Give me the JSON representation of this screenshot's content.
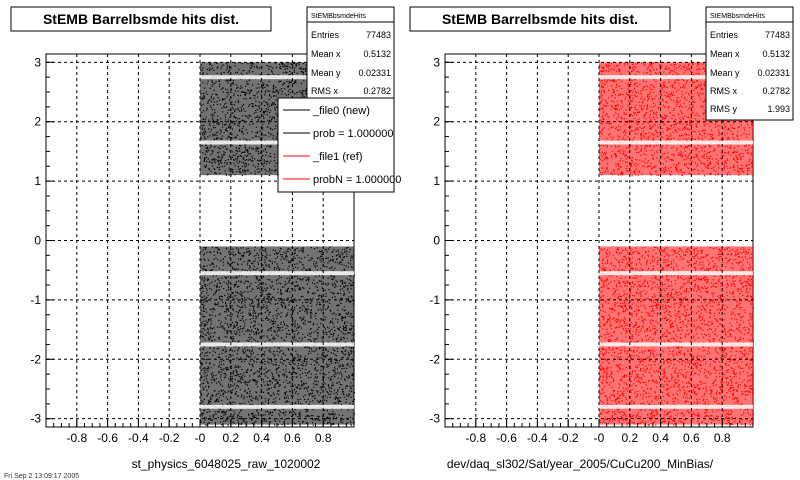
{
  "chart_data": [
    {
      "type": "scatter",
      "title": "StEMB Barrelbsmde hits dist.",
      "xlabel": "st_physics_6048025_raw_1020002",
      "ylabel": "",
      "xlim": [
        -1.0,
        1.0
      ],
      "ylim": [
        -3.14,
        3.14
      ],
      "x_ticks": [
        "-0.8",
        "-0.6",
        "-0.4",
        "-0.2",
        "-0",
        "0.2",
        "0.4",
        "0.6",
        "0.8"
      ],
      "y_ticks": [
        "-3",
        "-2",
        "-1",
        "0",
        "1",
        "2",
        "3"
      ],
      "grid": true,
      "series": [
        {
          "name": "_file0 (new)",
          "color": "#000000"
        }
      ],
      "data_regions": [
        {
          "x": [
            0.0,
            1.0
          ],
          "y": [
            1.1,
            3.0
          ]
        },
        {
          "x": [
            0.0,
            1.0
          ],
          "y": [
            -3.1,
            -0.1
          ]
        }
      ],
      "stats": {
        "name": "StEMBbsmdeHits",
        "rows": [
          {
            "label": "Entries",
            "value": "77483"
          },
          {
            "label": "Mean x",
            "value": "0.5132"
          },
          {
            "label": "Mean y",
            "value": "0.02331"
          },
          {
            "label": "RMS x",
            "value": "0.2782"
          }
        ]
      },
      "legend": {
        "placement": "top-right",
        "entries": [
          {
            "label": "_file0 (new)",
            "color": "#000000"
          },
          {
            "label": "prob = 1.000000",
            "color": "#000000"
          },
          {
            "label": "_file1 (ref)",
            "color": "#ff0000"
          },
          {
            "label": "probN = 1.000000",
            "color": "#ff0000"
          }
        ]
      }
    },
    {
      "type": "scatter",
      "title": "StEMB Barrelbsmde hits dist.",
      "xlabel": "dev/daq_sl302/Sat/year_2005/CuCu200_MinBias/",
      "ylabel": "",
      "xlim": [
        -1.0,
        1.0
      ],
      "ylim": [
        -3.14,
        3.14
      ],
      "x_ticks": [
        "-0.8",
        "-0.6",
        "-0.4",
        "-0.2",
        "-0",
        "0.2",
        "0.4",
        "0.6",
        "0.8"
      ],
      "y_ticks": [
        "-3",
        "-2",
        "-1",
        "0",
        "1",
        "2",
        "3"
      ],
      "grid": true,
      "series": [
        {
          "name": "_file1 (ref)",
          "color": "#ff0000"
        }
      ],
      "data_regions": [
        {
          "x": [
            0.0,
            1.0
          ],
          "y": [
            1.1,
            3.0
          ]
        },
        {
          "x": [
            0.0,
            1.0
          ],
          "y": [
            -3.1,
            -0.1
          ]
        }
      ],
      "stats": {
        "name": "StEMBbsmdeHits",
        "rows": [
          {
            "label": "Entries",
            "value": "77483"
          },
          {
            "label": "Mean x",
            "value": "0.5132"
          },
          {
            "label": "Mean y",
            "value": "0.02331"
          },
          {
            "label": "RMS x",
            "value": "0.2782"
          },
          {
            "label": "RMS y",
            "value": "1.993"
          }
        ]
      }
    }
  ],
  "footer": {
    "timestamp": "Fri Sep  2 13:09:17 2005"
  }
}
